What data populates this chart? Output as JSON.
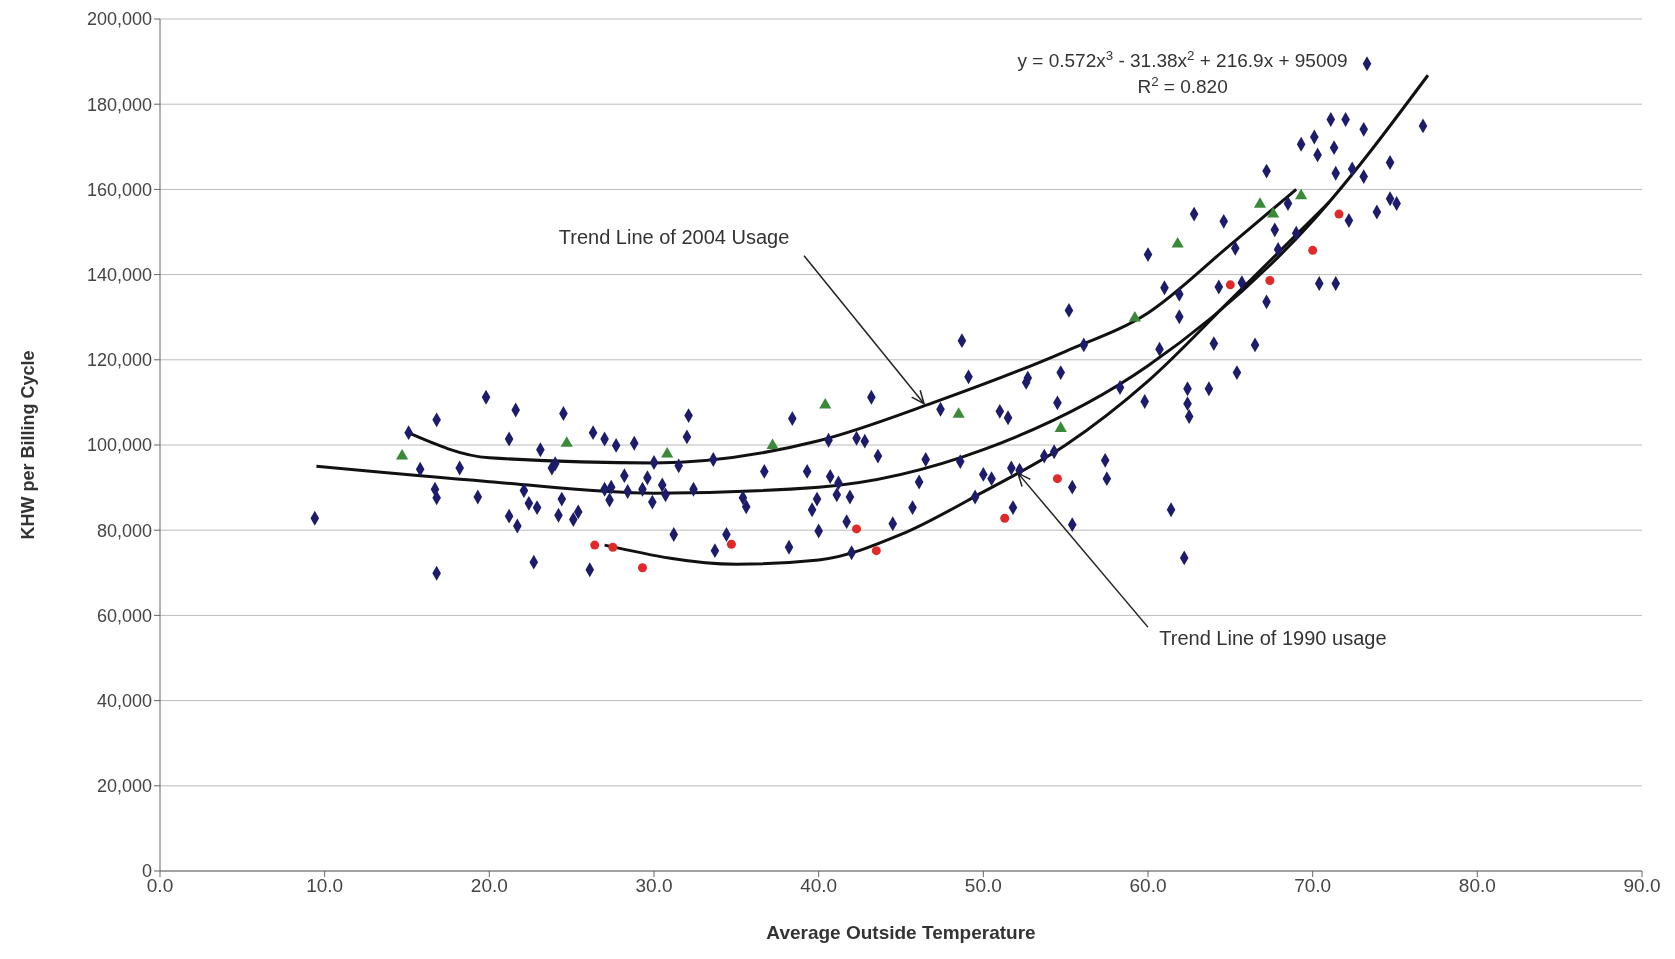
{
  "chart_data": {
    "type": "scatter",
    "xlabel": "Average Outside Temperature",
    "ylabel": "KHW per Billing Cycle",
    "xlim": [
      0,
      90
    ],
    "ylim": [
      0,
      200000
    ],
    "xticks": [
      {
        "value": 0,
        "label": "0.0"
      },
      {
        "value": 10,
        "label": "10.0"
      },
      {
        "value": 20,
        "label": "20.0"
      },
      {
        "value": 30,
        "label": "30.0"
      },
      {
        "value": 40,
        "label": "40.0"
      },
      {
        "value": 50,
        "label": "50.0"
      },
      {
        "value": 60,
        "label": "60.0"
      },
      {
        "value": 70,
        "label": "70.0"
      },
      {
        "value": 80,
        "label": "80.0"
      },
      {
        "value": 90,
        "label": "90.0"
      }
    ],
    "yticks": [
      {
        "value": 0,
        "label": "0"
      },
      {
        "value": 20000,
        "label": "20,000"
      },
      {
        "value": 40000,
        "label": "40,000"
      },
      {
        "value": 60000,
        "label": "60,000"
      },
      {
        "value": 80000,
        "label": "80,000"
      },
      {
        "value": 100000,
        "label": "100,000"
      },
      {
        "value": 120000,
        "label": "120,000"
      },
      {
        "value": 140000,
        "label": "140,000"
      },
      {
        "value": 160000,
        "label": "160,000"
      },
      {
        "value": 180000,
        "label": "180,000"
      },
      {
        "value": 200000,
        "label": "200,000"
      }
    ],
    "grid": "y",
    "legend": false,
    "series": [
      {
        "color": "#1c1c6a",
        "marker": "diamond",
        "x": [
          9.4,
          15.1,
          15.8,
          16.7,
          16.8,
          16.8,
          16.8,
          18.2,
          19.3,
          19.8,
          21.6,
          21.2,
          21.2,
          21.7,
          22.1,
          22.4,
          22.7,
          22.9,
          23.1,
          23.8,
          24.2,
          24.0,
          24.4,
          24.5,
          25.1,
          25.4,
          26.1,
          26.3,
          27.0,
          27.0,
          27.3,
          27.4,
          27.7,
          28.2,
          28.4,
          28.8,
          29.3,
          29.6,
          29.9,
          30.0,
          30.5,
          30.7,
          31.2,
          31.5,
          32.0,
          32.1,
          32.4,
          33.7,
          33.6,
          34.4,
          35.4,
          35.6,
          36.7,
          38.2,
          38.4,
          39.3,
          39.6,
          40.0,
          39.9,
          40.6,
          40.7,
          41.1,
          41.2,
          41.7,
          41.9,
          42.0,
          42.3,
          42.8,
          43.2,
          43.6,
          44.5,
          45.7,
          46.1,
          46.5,
          47.4,
          48.7,
          49.1,
          48.6,
          49.5,
          50.0,
          50.5,
          51.0,
          51.5,
          51.7,
          51.8,
          52.2,
          52.6,
          52.7,
          53.7,
          54.3,
          54.5,
          54.7,
          55.2,
          55.4,
          55.4,
          56.1,
          57.4,
          57.5,
          58.3,
          59.8,
          60.0,
          60.7,
          61.0,
          61.4,
          61.9,
          61.9,
          62.2,
          62.4,
          62.4,
          62.5,
          62.8,
          63.7,
          64.0,
          64.3,
          64.6,
          65.3,
          65.4,
          65.7,
          66.5,
          67.2,
          67.2,
          67.7,
          67.9,
          68.5,
          69.0,
          69.3,
          70.1,
          70.3,
          70.4,
          71.1,
          71.3,
          71.4,
          72.0,
          71.4,
          72.2,
          72.4,
          73.1,
          73.1,
          73.3,
          73.9,
          74.7,
          74.7,
          75.1,
          76.7
        ],
        "values": [
          82800,
          102900,
          94300,
          89600,
          87600,
          105900,
          69900,
          94600,
          87800,
          111200,
          108200,
          101400,
          83300,
          81000,
          89300,
          86300,
          72500,
          85300,
          98900,
          94600,
          83500,
          95600,
          87300,
          107400,
          82500,
          84300,
          70700,
          102900,
          101400,
          89600,
          87100,
          90100,
          99900,
          92800,
          89100,
          100400,
          89600,
          92300,
          86600,
          95900,
          90600,
          88300,
          79000,
          95100,
          101900,
          106900,
          89600,
          75200,
          96600,
          79000,
          87600,
          85500,
          93800,
          76000,
          106200,
          93800,
          84800,
          79800,
          87300,
          101100,
          92600,
          88300,
          91100,
          82000,
          87800,
          74700,
          101600,
          100900,
          111200,
          97400,
          81500,
          85300,
          91300,
          96600,
          108400,
          124500,
          116000,
          96100,
          87800,
          93100,
          92100,
          107900,
          106400,
          94600,
          85300,
          94100,
          114700,
          115700,
          97400,
          98400,
          109900,
          117000,
          131600,
          90100,
          81300,
          123500,
          96400,
          92100,
          113500,
          110200,
          144700,
          122500,
          136900,
          84800,
          135400,
          130100,
          73500,
          113200,
          109700,
          106700,
          154200,
          113200,
          123800,
          137100,
          152500,
          146200,
          117000,
          138100,
          123500,
          164300,
          133600,
          150500,
          145900,
          156700,
          149700,
          170600,
          172300,
          168100,
          137900,
          176400,
          169800,
          163800,
          176400,
          137900,
          152700,
          164800,
          163000,
          174100,
          189500,
          154700,
          166300,
          157800,
          156700,
          174900
        ]
      },
      {
        "color": "#3a8a3a",
        "marker": "triangle",
        "x": [
          14.7,
          24.7,
          30.8,
          37.2,
          40.4,
          48.5,
          54.7,
          59.2,
          61.8,
          66.8,
          67.6,
          69.3
        ],
        "values": [
          97400,
          100400,
          97900,
          99900,
          109400,
          107200,
          103900,
          129800,
          147200,
          156500,
          154200,
          158500
        ]
      },
      {
        "color": "#e02a2a",
        "marker": "circle",
        "x": [
          26.4,
          27.5,
          29.3,
          34.7,
          42.3,
          43.5,
          51.3,
          54.5,
          65.0,
          67.4,
          70.0,
          71.6
        ],
        "values": [
          76500,
          76000,
          71200,
          76700,
          80300,
          75200,
          82800,
          92100,
          137600,
          138600,
          145700,
          154200
        ]
      },
      {
        "type": "line",
        "color": "#111111",
        "marker": "none",
        "line_style": "solid",
        "x": [
          15,
          20,
          30,
          40,
          47,
          55,
          60,
          65,
          69
        ],
        "values": [
          103000,
          97000,
          95800,
          101000,
          110000,
          122000,
          131000,
          147000,
          160000
        ]
      },
      {
        "type": "line",
        "color": "#111111",
        "marker": "none",
        "line_style": "solid",
        "x": [
          9.5,
          20,
          30,
          40,
          50,
          60,
          70,
          77
        ],
        "values": [
          95000,
          91400,
          88700,
          90100,
          98900,
          118600,
          152600,
          186800
        ]
      },
      {
        "type": "line",
        "color": "#111111",
        "marker": "none",
        "line_style": "solid",
        "x": [
          27,
          35,
          40,
          45,
          50,
          55,
          60,
          65,
          71
        ],
        "values": [
          76500,
          72000,
          73000,
          79000,
          89000,
          100000,
          115000,
          134000,
          157000
        ]
      }
    ],
    "annotations": [
      "y = 0.572x$^{3}$ - 31.38x$^{2}$ + 216.9x + 95009",
      "R$^{2}$ = 0.820",
      {
        "text": "Trend Line of 2004 Usage",
        "x": 46.4,
        "y": 109700
      },
      {
        "text": "Trend Line of 1990 usage",
        "x": 52.1,
        "y": 93400
      }
    ]
  }
}
